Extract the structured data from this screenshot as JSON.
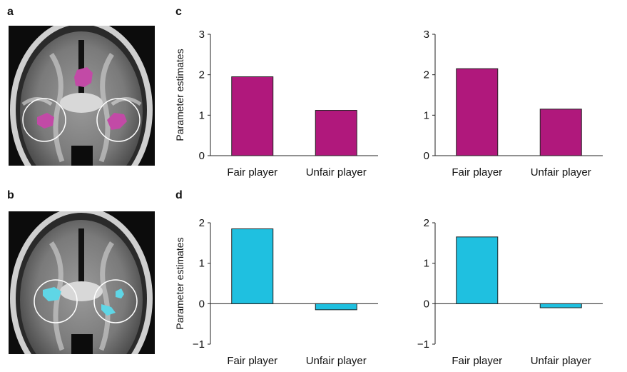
{
  "panels": {
    "a": "a",
    "b": "b",
    "c": "c",
    "d": "d"
  },
  "colors": {
    "magenta": "#b0187c",
    "cyan": "#1fc0e0",
    "magenta_blob": "#c24aa6",
    "cyan_blob": "#5fd6e6"
  },
  "brain_images": [
    {
      "id": "a",
      "blob_color": "magenta_blob"
    },
    {
      "id": "b",
      "blob_color": "cyan_blob"
    }
  ],
  "chart_data": [
    {
      "type": "bar",
      "panel": "c",
      "categories": [
        "Fair player",
        "Unfair player"
      ],
      "values": [
        1.95,
        1.12
      ],
      "ylabel": "Parameter estimates",
      "yticks": [
        0,
        1,
        2,
        3
      ],
      "ylim": [
        0,
        3
      ],
      "color": "#b0187c"
    },
    {
      "type": "bar",
      "panel": "c",
      "categories": [
        "Fair player",
        "Unfair player"
      ],
      "values": [
        2.15,
        1.15
      ],
      "ylabel": "",
      "yticks": [
        0,
        1,
        2,
        3
      ],
      "ylim": [
        0,
        3
      ],
      "color": "#b0187c"
    },
    {
      "type": "bar",
      "panel": "d",
      "categories": [
        "Fair player",
        "Unfair player"
      ],
      "values": [
        1.85,
        -0.15
      ],
      "ylabel": "Parameter estimates",
      "yticks": [
        -1,
        0,
        1,
        2
      ],
      "ylim": [
        -1,
        2
      ],
      "color": "#1fc0e0"
    },
    {
      "type": "bar",
      "panel": "d",
      "categories": [
        "Fair player",
        "Unfair player"
      ],
      "values": [
        1.65,
        -0.1
      ],
      "ylabel": "",
      "yticks": [
        -1,
        0,
        1,
        2
      ],
      "ylim": [
        -1,
        2
      ],
      "color": "#1fc0e0"
    }
  ]
}
